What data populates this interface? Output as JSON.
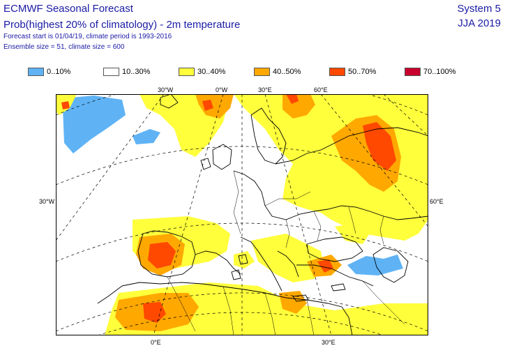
{
  "header": {
    "title": "ECMWF Seasonal Forecast",
    "subtitle": "Prob(highest 20% of climatology) - 2m temperature",
    "forecast_info": "Forecast start is 01/04/19, climate period is 1993-2016",
    "ensemble_info": "Ensemble size = 51, climate size = 600",
    "system": "System 5",
    "season": "JJA 2019"
  },
  "legend": [
    {
      "label": "0..10%",
      "color": "#5fb3f5"
    },
    {
      "label": "10..30%",
      "color": "#ffffff"
    },
    {
      "label": "30..40%",
      "color": "#ffff3c"
    },
    {
      "label": "40..50%",
      "color": "#ffa800"
    },
    {
      "label": "50..70%",
      "color": "#ff4800"
    },
    {
      "label": "70..100%",
      "color": "#c8002d"
    }
  ],
  "axis_labels": {
    "top": [
      "30°W",
      "0°W",
      "30°E",
      "60°E"
    ],
    "left": "30°W",
    "right": "60°E",
    "bottom": [
      "0°E",
      "30°E"
    ]
  }
}
